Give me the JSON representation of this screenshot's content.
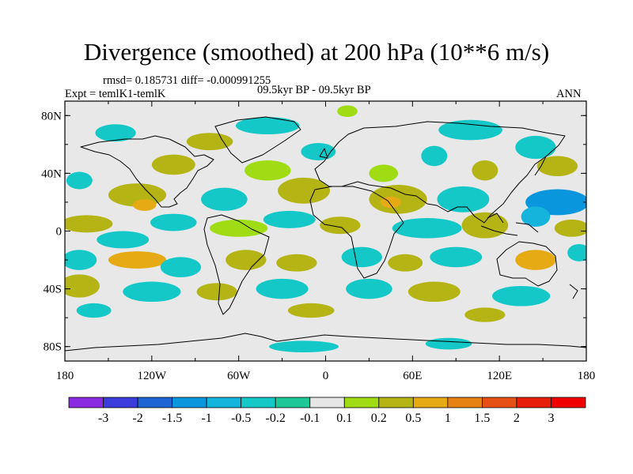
{
  "chart_data": {
    "type": "contour-map",
    "title": "Divergence (smoothed) at 200 hPa (10**6 m/s)",
    "stats": "rmsd= 0.185731 diff= -0.000991255",
    "experiment": "Expt = temlK1-temlK",
    "period": "09.5kyr BP - 09.5kyr BP",
    "season": "ANN",
    "xlim": [
      -180,
      180
    ],
    "ylim": [
      -90,
      90
    ],
    "x_ticks": [
      {
        "lon": -180,
        "label": "180"
      },
      {
        "lon": -120,
        "label": "120W"
      },
      {
        "lon": -60,
        "label": "60W"
      },
      {
        "lon": 0,
        "label": "0"
      },
      {
        "lon": 60,
        "label": "60E"
      },
      {
        "lon": 120,
        "label": "120E"
      },
      {
        "lon": 180,
        "label": "180"
      }
    ],
    "y_ticks": [
      {
        "lat": 80,
        "label": "80N"
      },
      {
        "lat": 40,
        "label": "40N"
      },
      {
        "lat": 0,
        "label": "0"
      },
      {
        "lat": -40,
        "label": "40S"
      },
      {
        "lat": -80,
        "label": "80S"
      }
    ],
    "colorbar": {
      "levels": [
        "-3",
        "-2",
        "-1.5",
        "-1",
        "-0.5",
        "-0.2",
        "-0.1",
        "0.1",
        "0.2",
        "0.5",
        "1",
        "1.5",
        "2",
        "3"
      ],
      "colors": [
        "#8a2be2",
        "#3c3cdc",
        "#1e64d2",
        "#0a96dc",
        "#14b4dc",
        "#14c8c8",
        "#1ec896",
        "#e6e6e6",
        "#a0dc14",
        "#b4b414",
        "#e6aa14",
        "#e68214",
        "#e65014",
        "#e61e0a",
        "#f00000"
      ]
    },
    "blobs": [
      {
        "lon": 15,
        "lat": 83,
        "rx": 7,
        "ry": 4,
        "level": 8
      },
      {
        "lon": -145,
        "lat": 68,
        "rx": 14,
        "ry": 6,
        "level": 5
      },
      {
        "lon": -40,
        "lat": 73,
        "rx": 22,
        "ry": 6,
        "level": 5
      },
      {
        "lon": 100,
        "lat": 70,
        "rx": 22,
        "ry": 7,
        "level": 5
      },
      {
        "lon": -80,
        "lat": 62,
        "rx": 16,
        "ry": 6,
        "level": 9
      },
      {
        "lon": 145,
        "lat": 58,
        "rx": 14,
        "ry": 8,
        "level": 5
      },
      {
        "lon": -5,
        "lat": 55,
        "rx": 12,
        "ry": 6,
        "level": 5
      },
      {
        "lon": 75,
        "lat": 52,
        "rx": 9,
        "ry": 7,
        "level": 5
      },
      {
        "lon": -105,
        "lat": 46,
        "rx": 15,
        "ry": 7,
        "level": 9
      },
      {
        "lon": -40,
        "lat": 42,
        "rx": 16,
        "ry": 7,
        "level": 8
      },
      {
        "lon": 40,
        "lat": 40,
        "rx": 10,
        "ry": 6,
        "level": 8
      },
      {
        "lon": 110,
        "lat": 42,
        "rx": 9,
        "ry": 7,
        "level": 9
      },
      {
        "lon": 160,
        "lat": 45,
        "rx": 14,
        "ry": 7,
        "level": 9
      },
      {
        "lon": -170,
        "lat": 35,
        "rx": 9,
        "ry": 6,
        "level": 5
      },
      {
        "lon": -130,
        "lat": 25,
        "rx": 20,
        "ry": 8,
        "level": 9
      },
      {
        "lon": -125,
        "lat": 18,
        "rx": 8,
        "ry": 4,
        "level": 10
      },
      {
        "lon": -70,
        "lat": 22,
        "rx": 16,
        "ry": 8,
        "level": 5
      },
      {
        "lon": -15,
        "lat": 28,
        "rx": 18,
        "ry": 9,
        "level": 9
      },
      {
        "lon": 50,
        "lat": 22,
        "rx": 20,
        "ry": 10,
        "level": 9
      },
      {
        "lon": 45,
        "lat": 20,
        "rx": 7,
        "ry": 4,
        "level": 10
      },
      {
        "lon": 95,
        "lat": 22,
        "rx": 18,
        "ry": 9,
        "level": 5
      },
      {
        "lon": 160,
        "lat": 20,
        "rx": 22,
        "ry": 9,
        "level": 3
      },
      {
        "lon": 145,
        "lat": 10,
        "rx": 10,
        "ry": 7,
        "level": 4
      },
      {
        "lon": -165,
        "lat": 5,
        "rx": 18,
        "ry": 6,
        "level": 9
      },
      {
        "lon": -140,
        "lat": -6,
        "rx": 18,
        "ry": 6,
        "level": 5
      },
      {
        "lon": -105,
        "lat": 6,
        "rx": 16,
        "ry": 6,
        "level": 5
      },
      {
        "lon": -60,
        "lat": 2,
        "rx": 20,
        "ry": 6,
        "level": 8
      },
      {
        "lon": -25,
        "lat": 8,
        "rx": 18,
        "ry": 6,
        "level": 5
      },
      {
        "lon": 10,
        "lat": 4,
        "rx": 14,
        "ry": 6,
        "level": 9
      },
      {
        "lon": 70,
        "lat": 2,
        "rx": 24,
        "ry": 7,
        "level": 5
      },
      {
        "lon": 110,
        "lat": 4,
        "rx": 16,
        "ry": 9,
        "level": 9
      },
      {
        "lon": 170,
        "lat": 2,
        "rx": 12,
        "ry": 6,
        "level": 9
      },
      {
        "lon": -170,
        "lat": -20,
        "rx": 12,
        "ry": 7,
        "level": 5
      },
      {
        "lon": -130,
        "lat": -20,
        "rx": 20,
        "ry": 6,
        "level": 10
      },
      {
        "lon": -100,
        "lat": -25,
        "rx": 14,
        "ry": 7,
        "level": 5
      },
      {
        "lon": -55,
        "lat": -20,
        "rx": 14,
        "ry": 7,
        "level": 9
      },
      {
        "lon": -20,
        "lat": -22,
        "rx": 14,
        "ry": 6,
        "level": 9
      },
      {
        "lon": 25,
        "lat": -18,
        "rx": 14,
        "ry": 7,
        "level": 5
      },
      {
        "lon": 55,
        "lat": -22,
        "rx": 12,
        "ry": 6,
        "level": 9
      },
      {
        "lon": 90,
        "lat": -18,
        "rx": 18,
        "ry": 7,
        "level": 5
      },
      {
        "lon": 145,
        "lat": -20,
        "rx": 14,
        "ry": 7,
        "level": 10
      },
      {
        "lon": 175,
        "lat": -15,
        "rx": 8,
        "ry": 6,
        "level": 5
      },
      {
        "lon": -170,
        "lat": -38,
        "rx": 14,
        "ry": 8,
        "level": 9
      },
      {
        "lon": -120,
        "lat": -42,
        "rx": 20,
        "ry": 7,
        "level": 5
      },
      {
        "lon": -75,
        "lat": -42,
        "rx": 14,
        "ry": 6,
        "level": 9
      },
      {
        "lon": -30,
        "lat": -40,
        "rx": 18,
        "ry": 7,
        "level": 5
      },
      {
        "lon": 30,
        "lat": -40,
        "rx": 16,
        "ry": 7,
        "level": 5
      },
      {
        "lon": 75,
        "lat": -42,
        "rx": 18,
        "ry": 7,
        "level": 9
      },
      {
        "lon": 135,
        "lat": -45,
        "rx": 20,
        "ry": 7,
        "level": 5
      },
      {
        "lon": -160,
        "lat": -55,
        "rx": 12,
        "ry": 5,
        "level": 5
      },
      {
        "lon": -10,
        "lat": -55,
        "rx": 16,
        "ry": 5,
        "level": 9
      },
      {
        "lon": 110,
        "lat": -58,
        "rx": 14,
        "ry": 5,
        "level": 9
      },
      {
        "lon": -15,
        "lat": -80,
        "rx": 24,
        "ry": 4,
        "level": 5
      },
      {
        "lon": 85,
        "lat": -78,
        "rx": 16,
        "ry": 4,
        "level": 5
      }
    ]
  }
}
